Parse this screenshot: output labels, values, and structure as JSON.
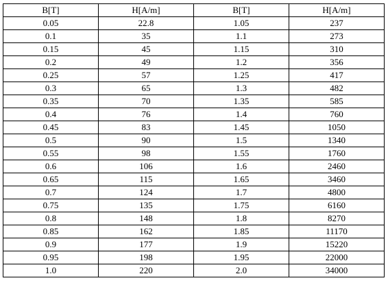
{
  "table": {
    "headers": [
      "B[T]",
      "H[A/m]",
      "B[T]",
      "H[A/m]"
    ],
    "rows": [
      [
        "0.05",
        "22.8",
        "1.05",
        "237"
      ],
      [
        "0.1",
        "35",
        "1.1",
        "273"
      ],
      [
        "0.15",
        "45",
        "1.15",
        "310"
      ],
      [
        "0.2",
        "49",
        "1.2",
        "356"
      ],
      [
        "0.25",
        "57",
        "1.25",
        "417"
      ],
      [
        "0.3",
        "65",
        "1.3",
        "482"
      ],
      [
        "0.35",
        "70",
        "1.35",
        "585"
      ],
      [
        "0.4",
        "76",
        "1.4",
        "760"
      ],
      [
        "0.45",
        "83",
        "1.45",
        "1050"
      ],
      [
        "0.5",
        "90",
        "1.5",
        "1340"
      ],
      [
        "0.55",
        "98",
        "1.55",
        "1760"
      ],
      [
        "0.6",
        "106",
        "1.6",
        "2460"
      ],
      [
        "0.65",
        "115",
        "1.65",
        "3460"
      ],
      [
        "0.7",
        "124",
        "1.7",
        "4800"
      ],
      [
        "0.75",
        "135",
        "1.75",
        "6160"
      ],
      [
        "0.8",
        "148",
        "1.8",
        "8270"
      ],
      [
        "0.85",
        "162",
        "1.85",
        "11170"
      ],
      [
        "0.9",
        "177",
        "1.9",
        "15220"
      ],
      [
        "0.95",
        "198",
        "1.95",
        "22000"
      ],
      [
        "1.0",
        "220",
        "2.0",
        "34000"
      ]
    ]
  }
}
